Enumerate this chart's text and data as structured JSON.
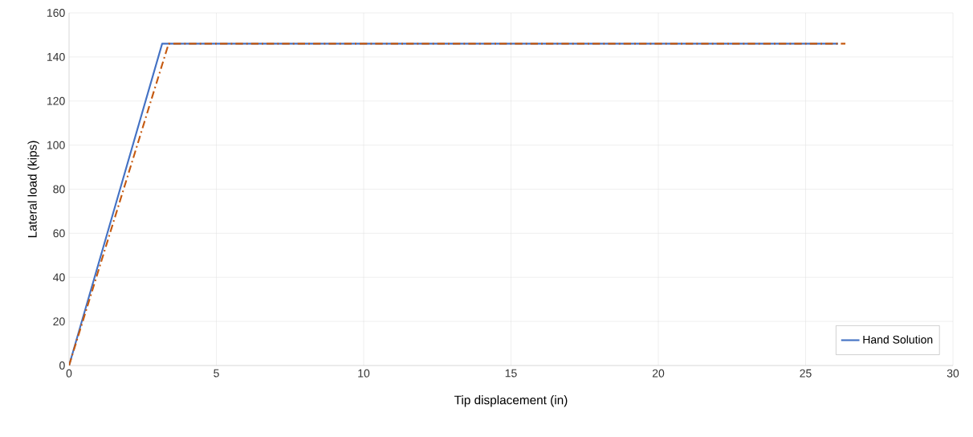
{
  "chart_data": {
    "type": "line",
    "xlabel": "Tip displacement (in)",
    "ylabel": "Lateral load (kips)",
    "xlim": [
      0,
      30
    ],
    "xticks": [
      0,
      5,
      10,
      15,
      20,
      25,
      30
    ],
    "ylim": [
      0,
      160
    ],
    "yticks": [
      0,
      20,
      40,
      60,
      80,
      100,
      120,
      140,
      160
    ],
    "grid": true,
    "legend": "bottom right",
    "series": [
      {
        "name": "Hand Solution",
        "color": "#4472c4",
        "line_style": "solid",
        "x": [
          0,
          3.16,
          26.1
        ],
        "values": [
          0,
          146,
          146
        ]
      },
      {
        "color": "#c55a11",
        "line_style": "dashdot",
        "x": [
          0,
          3.38,
          26.35
        ],
        "values": [
          0,
          146,
          146
        ]
      }
    ]
  }
}
